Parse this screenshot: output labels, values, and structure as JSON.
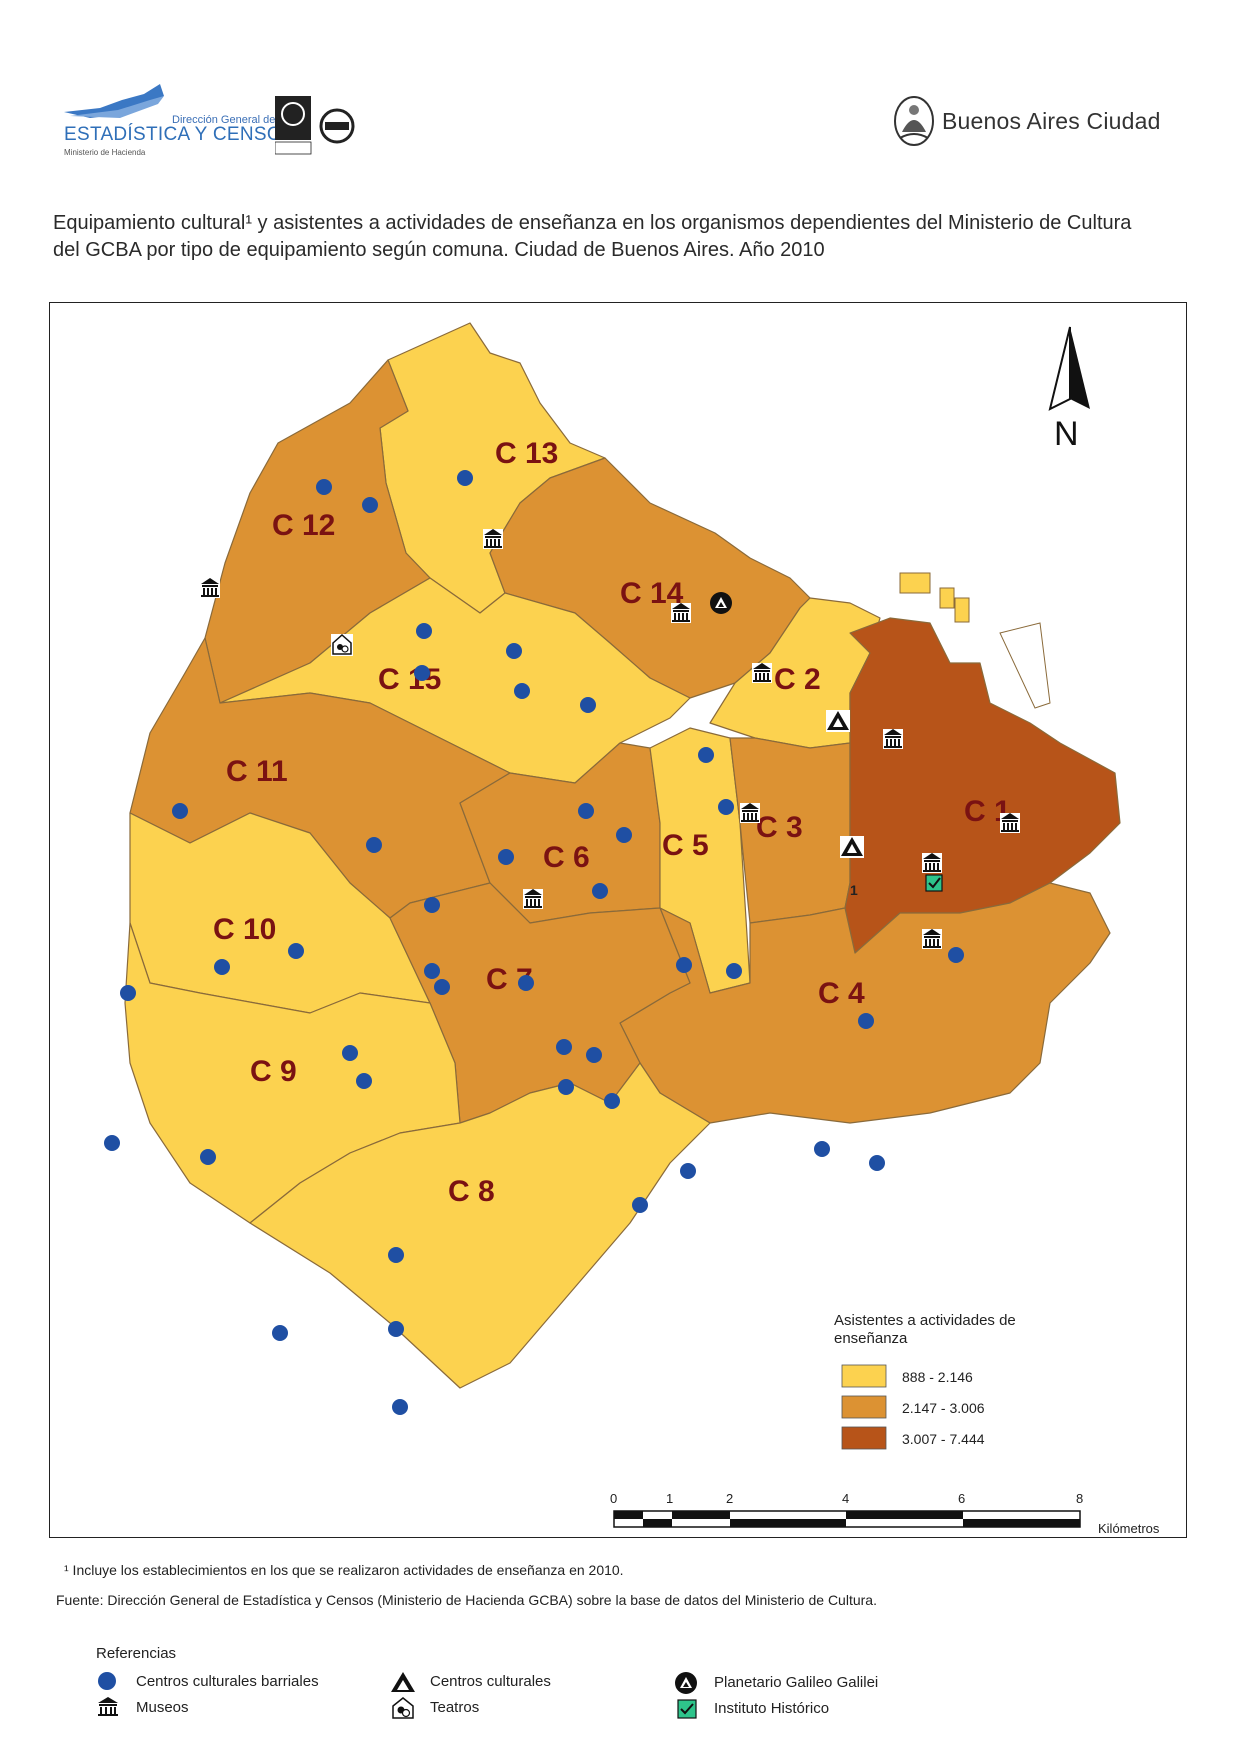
{
  "header": {
    "org_line1": "Dirección General de",
    "org_line2": "ESTADÍSTICA Y CENSOS",
    "org_line3": "Ministerio de Hacienda",
    "city_name": "Buenos Aires Ciudad"
  },
  "title": "Equipamiento cultural¹ y asistentes a actividades de enseñanza en los organismos dependientes del Ministerio de Cultura del GCBA por tipo de equipamiento según comuna. Ciudad de Buenos Aires. Año 2010",
  "north_label": "N",
  "comunas": [
    {
      "id": "C 1",
      "class": 3
    },
    {
      "id": "C 2",
      "class": 1
    },
    {
      "id": "C 3",
      "class": 2
    },
    {
      "id": "C 4",
      "class": 2
    },
    {
      "id": "C 5",
      "class": 1
    },
    {
      "id": "C 6",
      "class": 2
    },
    {
      "id": "C 7",
      "class": 2
    },
    {
      "id": "C 8",
      "class": 1
    },
    {
      "id": "C 9",
      "class": 1
    },
    {
      "id": "C 10",
      "class": 1
    },
    {
      "id": "C 11",
      "class": 2
    },
    {
      "id": "C 12",
      "class": 2
    },
    {
      "id": "C 13",
      "class": 1
    },
    {
      "id": "C 14",
      "class": 2
    },
    {
      "id": "C 15",
      "class": 1
    }
  ],
  "legend": {
    "title_line1": "Asistentes a actividades de",
    "title_line2": "enseñanza",
    "classes": [
      {
        "label": "888 - 2.146",
        "color": "#fcd24f"
      },
      {
        "label": "2.147 - 3.006",
        "color": "#dc9233"
      },
      {
        "label": "3.007 - 7.444",
        "color": "#b75419"
      }
    ]
  },
  "scale": {
    "ticks": [
      "0",
      "1",
      "2",
      "4",
      "6",
      "8"
    ],
    "unit": "Kilómetros"
  },
  "annotation_1": "1",
  "footnote": "¹ Incluye los establecimientos en los que se realizaron actividades de enseñanza en 2010.",
  "source_label": "Fuente:",
  "source_text": " Dirección General de Estadística y Censos (Ministerio de Hacienda GCBA) sobre la base de datos del Ministerio de Cultura.",
  "references": {
    "title": "Referencias",
    "items": [
      {
        "label": "Centros culturales barriales",
        "icon": "blue-dot-icon"
      },
      {
        "label": "Museos",
        "icon": "museum-icon"
      },
      {
        "label": "Centros culturales",
        "icon": "triangle-icon"
      },
      {
        "label": "Teatros",
        "icon": "theater-icon"
      },
      {
        "label": "Planetario Galileo Galilei",
        "icon": "planetarium-icon"
      },
      {
        "label": "Instituto Histórico",
        "icon": "check-square-icon"
      }
    ]
  },
  "colors": {
    "class1": "#fcd24f",
    "class2": "#dc9233",
    "class3": "#b75419",
    "dot": "#1f4fa3"
  }
}
